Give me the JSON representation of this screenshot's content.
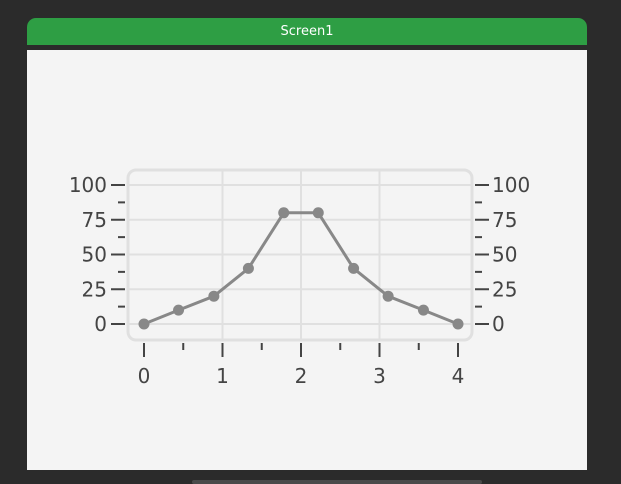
{
  "window": {
    "title": "Screen1"
  },
  "colors": {
    "titlebar": "#2e9e44",
    "screen_bg": "#f4f4f4",
    "plot_border": "#e0e0e0",
    "grid": "#e0e0e0",
    "series": "#888888",
    "axis": "#444444"
  },
  "chart_data": {
    "type": "line",
    "title": "",
    "xlabel": "",
    "ylabel": "",
    "xlim": [
      0,
      4
    ],
    "ylim": [
      0,
      100
    ],
    "x_ticks": [
      "0",
      "1",
      "2",
      "3",
      "4"
    ],
    "y_ticks": [
      "0",
      "25",
      "50",
      "75",
      "100"
    ],
    "y_axis_sides": [
      "left",
      "right"
    ],
    "grid": true,
    "series": [
      {
        "points": [
          {
            "x": 0,
            "y": 0
          },
          {
            "x": 0.44,
            "y": 10
          },
          {
            "x": 0.89,
            "y": 20
          },
          {
            "x": 1.33,
            "y": 40
          },
          {
            "x": 1.78,
            "y": 80
          },
          {
            "x": 2.22,
            "y": 80
          },
          {
            "x": 2.67,
            "y": 40
          },
          {
            "x": 3.11,
            "y": 20
          },
          {
            "x": 3.56,
            "y": 10
          },
          {
            "x": 4,
            "y": 0
          }
        ]
      }
    ]
  }
}
